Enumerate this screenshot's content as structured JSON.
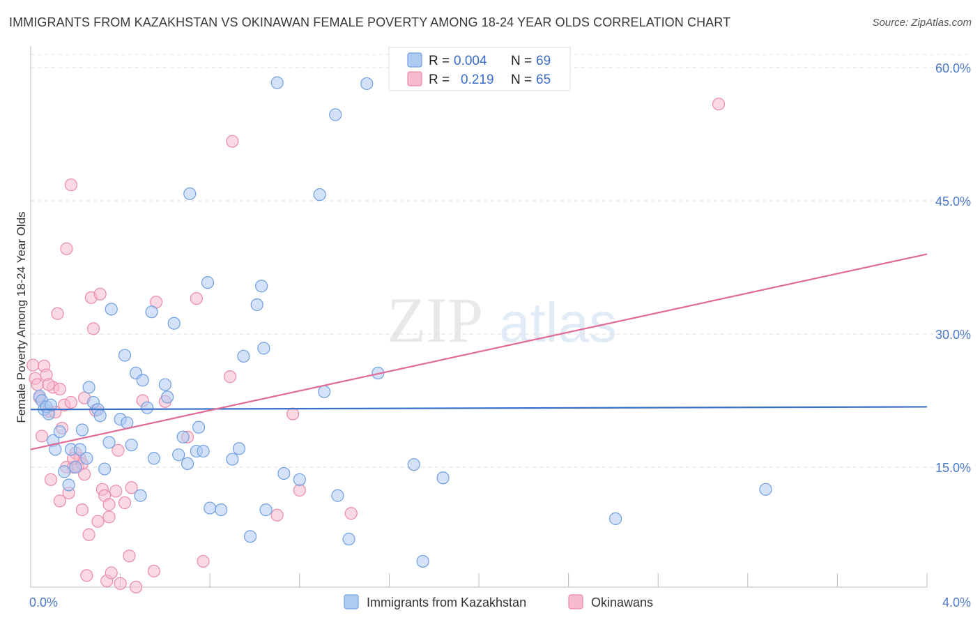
{
  "title": "IMMIGRANTS FROM KAZAKHSTAN VS OKINAWAN FEMALE POVERTY AMONG 18-24 YEAR OLDS CORRELATION CHART",
  "source": "Source: ZipAtlas.com",
  "watermark": {
    "zip": "ZIP",
    "atlas": "atlas"
  },
  "legend": {
    "r_label": "R =",
    "n_label": "N =",
    "entries": [
      {
        "r": "0.004",
        "n": "69"
      },
      {
        "r": "0.219",
        "n": "65"
      }
    ]
  },
  "colors": {
    "blue_fill": "#aecbf2",
    "blue_stroke": "#6f9fe0",
    "blue_line": "#3a6fc8",
    "pink_fill": "#f7b9cc",
    "pink_stroke": "#e98aa8",
    "pink_line": "#e06a95"
  },
  "chart_data": {
    "type": "scatter",
    "title": "IMMIGRANTS FROM KAZAKHSTAN VS OKINAWAN FEMALE POVERTY AMONG 18-24 YEAR OLDS CORRELATION CHART",
    "xlabel": "",
    "ylabel": "Female Poverty Among 18-24 Year Olds",
    "xlim": [
      0,
      4
    ],
    "ylim": [
      0,
      60
    ],
    "x_tick_labels": [
      "0.0%",
      "4.0%"
    ],
    "y_ticks": [
      15,
      30,
      45,
      60
    ],
    "y_tick_labels": [
      "15.0%",
      "30.0%",
      "45.0%",
      "60.0%"
    ],
    "series": [
      {
        "name": "Immigrants from Kazakhstan",
        "r": 0.004,
        "n": 69,
        "trend": {
          "x0": 0,
          "y0": 21.5,
          "x1": 4,
          "y1": 21.8
        },
        "points": [
          [
            0.04,
            23.0
          ],
          [
            0.05,
            22.5
          ],
          [
            0.06,
            21.5
          ],
          [
            0.07,
            21.8
          ],
          [
            0.08,
            21.0
          ],
          [
            0.09,
            22.0
          ],
          [
            0.1,
            18.0
          ],
          [
            0.11,
            17.0
          ],
          [
            0.13,
            19.0
          ],
          [
            0.15,
            14.5
          ],
          [
            0.17,
            13.0
          ],
          [
            0.18,
            17.0
          ],
          [
            0.2,
            15.0
          ],
          [
            0.22,
            17.0
          ],
          [
            0.23,
            19.2
          ],
          [
            0.25,
            16.0
          ],
          [
            0.26,
            24.0
          ],
          [
            0.28,
            22.3
          ],
          [
            0.3,
            21.5
          ],
          [
            0.31,
            20.8
          ],
          [
            0.33,
            14.8
          ],
          [
            0.35,
            17.8
          ],
          [
            0.36,
            32.8
          ],
          [
            0.4,
            20.4
          ],
          [
            0.42,
            27.6
          ],
          [
            0.43,
            20.0
          ],
          [
            0.45,
            17.5
          ],
          [
            0.47,
            25.6
          ],
          [
            0.49,
            11.8
          ],
          [
            0.5,
            24.8
          ],
          [
            0.52,
            21.7
          ],
          [
            0.54,
            32.5
          ],
          [
            0.55,
            16.0
          ],
          [
            0.6,
            24.3
          ],
          [
            0.61,
            22.9
          ],
          [
            0.64,
            31.2
          ],
          [
            0.66,
            16.4
          ],
          [
            0.68,
            18.4
          ],
          [
            0.7,
            15.4
          ],
          [
            0.71,
            45.8
          ],
          [
            0.74,
            16.8
          ],
          [
            0.75,
            19.5
          ],
          [
            0.77,
            16.8
          ],
          [
            0.79,
            35.8
          ],
          [
            0.8,
            10.4
          ],
          [
            0.85,
            10.2
          ],
          [
            0.9,
            15.9
          ],
          [
            0.93,
            17.1
          ],
          [
            0.95,
            27.5
          ],
          [
            0.98,
            7.2
          ],
          [
            1.01,
            33.3
          ],
          [
            1.03,
            35.4
          ],
          [
            1.04,
            28.4
          ],
          [
            1.05,
            10.2
          ],
          [
            1.1,
            58.3
          ],
          [
            1.13,
            14.3
          ],
          [
            1.2,
            13.6
          ],
          [
            1.29,
            45.7
          ],
          [
            1.31,
            23.5
          ],
          [
            1.36,
            54.7
          ],
          [
            1.37,
            11.8
          ],
          [
            1.42,
            6.9
          ],
          [
            1.5,
            58.2
          ],
          [
            1.55,
            25.6
          ],
          [
            1.71,
            15.3
          ],
          [
            1.75,
            4.4
          ],
          [
            1.84,
            13.8
          ],
          [
            2.61,
            9.2
          ],
          [
            3.28,
            12.5
          ]
        ]
      },
      {
        "name": "Okinawans",
        "r": 0.219,
        "n": 65,
        "trend": {
          "x0": 0,
          "y0": 17.0,
          "x1": 4,
          "y1": 39.0
        },
        "points": [
          [
            0.01,
            26.5
          ],
          [
            0.02,
            25.0
          ],
          [
            0.03,
            24.3
          ],
          [
            0.04,
            22.8
          ],
          [
            0.05,
            18.5
          ],
          [
            0.06,
            26.4
          ],
          [
            0.07,
            25.4
          ],
          [
            0.08,
            21.3
          ],
          [
            0.09,
            13.6
          ],
          [
            0.1,
            24.0
          ],
          [
            0.11,
            21.2
          ],
          [
            0.12,
            32.3
          ],
          [
            0.13,
            11.2
          ],
          [
            0.14,
            19.4
          ],
          [
            0.15,
            22.0
          ],
          [
            0.16,
            15.0
          ],
          [
            0.16,
            39.6
          ],
          [
            0.17,
            12.1
          ],
          [
            0.18,
            22.3
          ],
          [
            0.18,
            46.8
          ],
          [
            0.19,
            15.0
          ],
          [
            0.2,
            16.6
          ],
          [
            0.21,
            15.1
          ],
          [
            0.22,
            16.0
          ],
          [
            0.23,
            15.4
          ],
          [
            0.23,
            10.2
          ],
          [
            0.24,
            14.2
          ],
          [
            0.24,
            22.8
          ],
          [
            0.25,
            2.8
          ],
          [
            0.26,
            7.4
          ],
          [
            0.27,
            34.1
          ],
          [
            0.28,
            30.6
          ],
          [
            0.29,
            21.4
          ],
          [
            0.3,
            8.9
          ],
          [
            0.31,
            34.5
          ],
          [
            0.32,
            12.5
          ],
          [
            0.33,
            11.8
          ],
          [
            0.34,
            2.2
          ],
          [
            0.35,
            9.4
          ],
          [
            0.35,
            10.8
          ],
          [
            0.36,
            3.1
          ],
          [
            0.38,
            12.3
          ],
          [
            0.39,
            16.9
          ],
          [
            0.4,
            1.9
          ],
          [
            0.42,
            11.0
          ],
          [
            0.44,
            5.0
          ],
          [
            0.45,
            12.7
          ],
          [
            0.47,
            1.5
          ],
          [
            0.5,
            22.5
          ],
          [
            0.55,
            3.3
          ],
          [
            0.56,
            33.6
          ],
          [
            0.6,
            22.4
          ],
          [
            0.7,
            18.4
          ],
          [
            0.74,
            34.0
          ],
          [
            0.77,
            4.4
          ],
          [
            0.89,
            25.2
          ],
          [
            0.9,
            51.7
          ],
          [
            1.1,
            9.6
          ],
          [
            1.17,
            21.0
          ],
          [
            1.2,
            12.4
          ],
          [
            1.43,
            9.8
          ],
          [
            3.07,
            55.9
          ],
          [
            0.08,
            24.3
          ],
          [
            0.19,
            16.0
          ],
          [
            0.13,
            23.8
          ]
        ]
      }
    ]
  },
  "bottom_legend": [
    "Immigrants from Kazakhstan",
    "Okinawans"
  ]
}
